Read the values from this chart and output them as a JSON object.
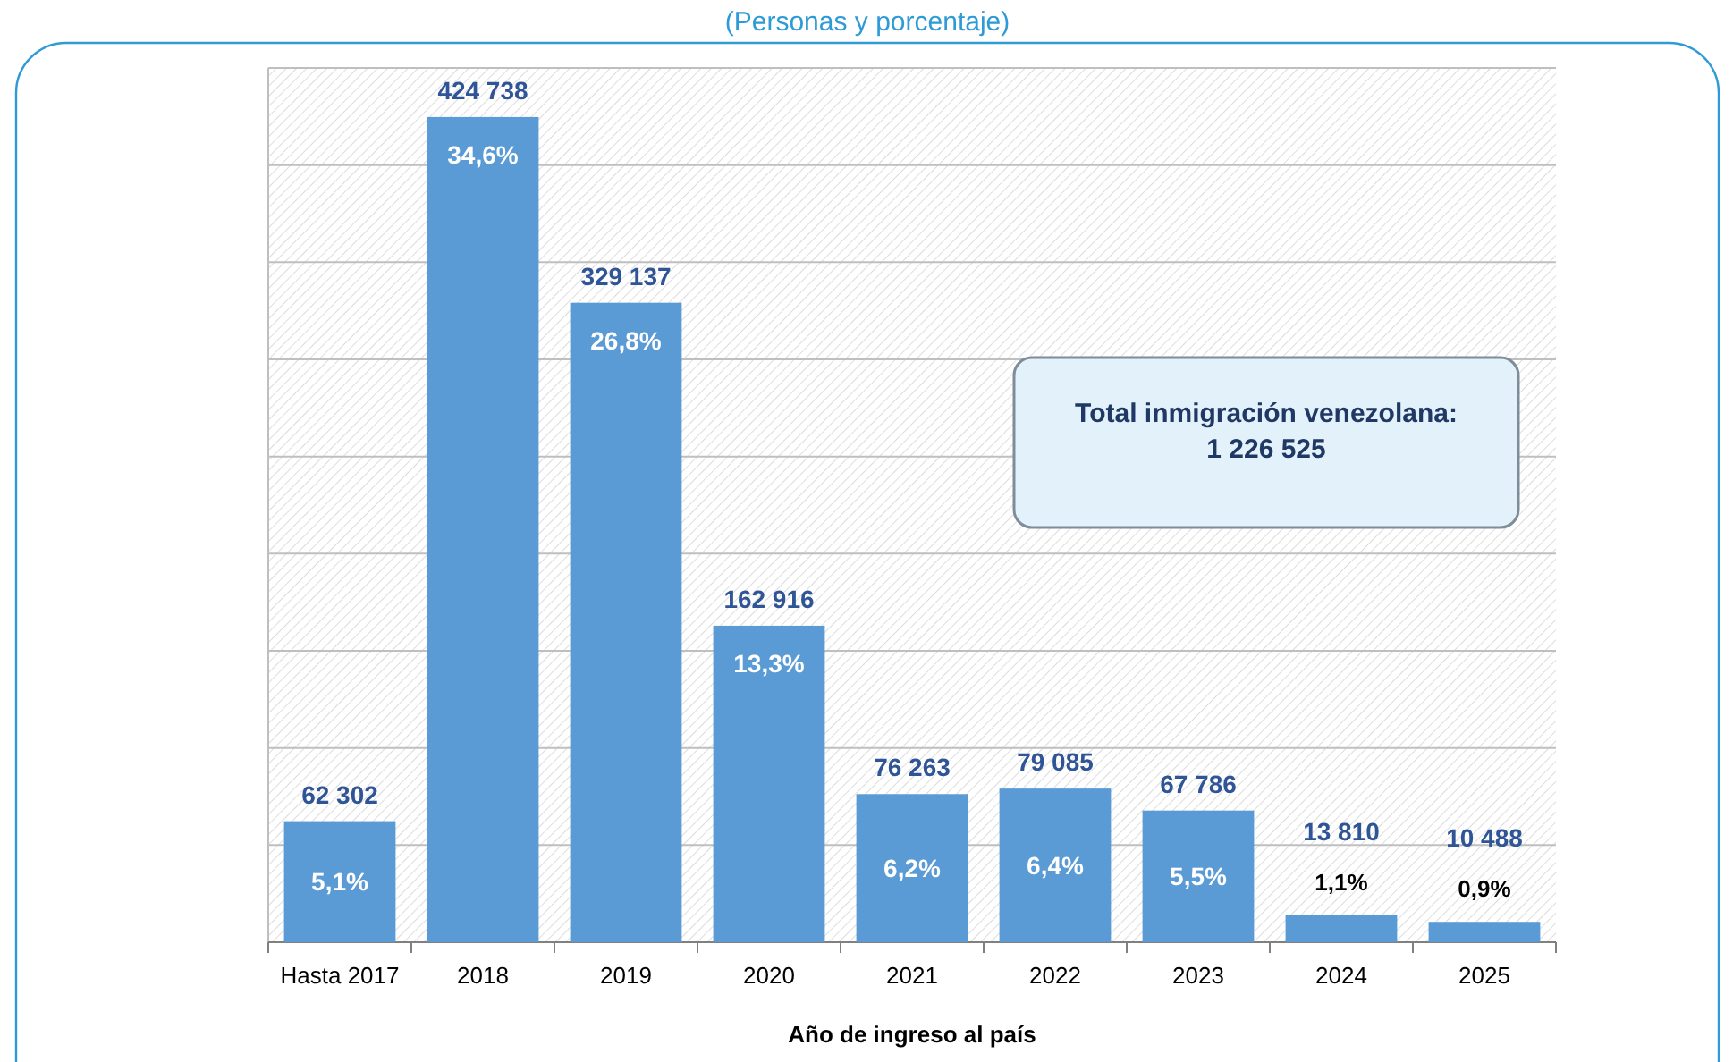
{
  "chart_data": {
    "type": "bar",
    "subtitle": "(Personas y porcentaje)",
    "xlabel": "Año de ingreso al país",
    "categories": [
      "Hasta 2017",
      "2018",
      "2019",
      "2020",
      "2021",
      "2022",
      "2023",
      "2024",
      "2025"
    ],
    "values": [
      62302,
      424738,
      329137,
      162916,
      76263,
      79085,
      67786,
      13810,
      10488
    ],
    "value_labels": [
      "62 302",
      "424 738",
      "329 137",
      "162 916",
      "76 263",
      "79 085",
      "67 786",
      "13 810",
      "10 488"
    ],
    "color": "#5b9bd5",
    "ylim": [
      0,
      450000
    ],
    "yticks": [
      {
        "value": 0,
        "label": null
      },
      {
        "value": 50000,
        "label": null
      },
      {
        "value": 100000,
        "label": null
      },
      {
        "value": 150000,
        "label": null
      },
      {
        "value": 200000,
        "label": null
      },
      {
        "value": 250000,
        "label": null
      },
      {
        "value": 300000,
        "label": null
      },
      {
        "value": 350000,
        "label": null
      },
      {
        "value": 400000,
        "label": null
      },
      {
        "value": 450000,
        "label": null
      }
    ],
    "tick_labels": "x",
    "grid": "y",
    "annotations": [
      {
        "text": "5,1%",
        "x": "Hasta 2017",
        "y": 62302
      },
      {
        "text": "34,6%",
        "x": "2018",
        "y": 424738
      },
      {
        "text": "26,8%",
        "x": "2019",
        "y": 329137
      },
      {
        "text": "13,3%",
        "x": "2020",
        "y": 162916
      },
      {
        "text": "6,2%",
        "x": "2021",
        "y": 76263
      },
      {
        "text": "6,4%",
        "x": "2022",
        "y": 79085
      },
      {
        "text": "5,5%",
        "x": "2023",
        "y": 67786
      },
      {
        "text": "1,1%",
        "x": "2024",
        "y": 13810
      },
      {
        "text": "0,9%",
        "x": "2025",
        "y": 10488
      },
      "Total inmigración venezolana:\n1 226 525"
    ]
  }
}
